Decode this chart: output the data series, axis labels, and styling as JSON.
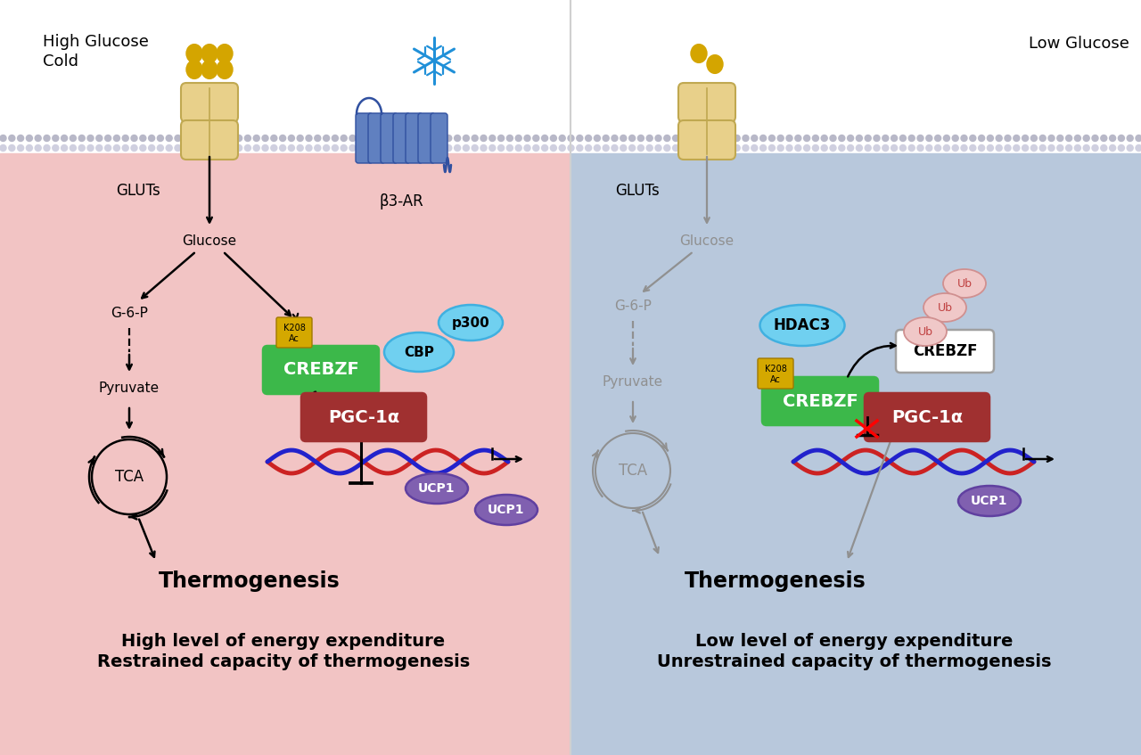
{
  "left_bg": "#f2c4c4",
  "right_bg": "#b8c8dc",
  "white_bg": "#ffffff",
  "left_label_line1": "High Glucose",
  "left_label_line2": "Cold",
  "right_label": "Low Glucose",
  "gluts_label": "GLUTs",
  "b3ar_label": "β3-AR",
  "glucose_label": "Glucose",
  "g6p_label": "G-6-P",
  "pyruvate_label": "Pyruvate",
  "tca_label": "TCA",
  "thermogenesis": "Thermogenesis",
  "crebzf_color": "#3cb84a",
  "pgc1a_color": "#a03030",
  "cbp_color": "#70d0f0",
  "p300_color": "#70d0f0",
  "ucp1_color": "#8060b0",
  "hdac3_color": "#70d0f0",
  "k208_color": "#d4a800",
  "ub_color": "#f0c8c8",
  "gray": "#909090",
  "membrane_dot1": "#b8b8c8",
  "membrane_dot2": "#d0d0e0",
  "bottom_left_1": "High level of energy expenditure",
  "bottom_left_2": "Restrained capacity of thermogenesis",
  "bottom_right_1": "Low level of energy expenditure",
  "bottom_right_2": "Unrestrained capacity of thermogenesis"
}
